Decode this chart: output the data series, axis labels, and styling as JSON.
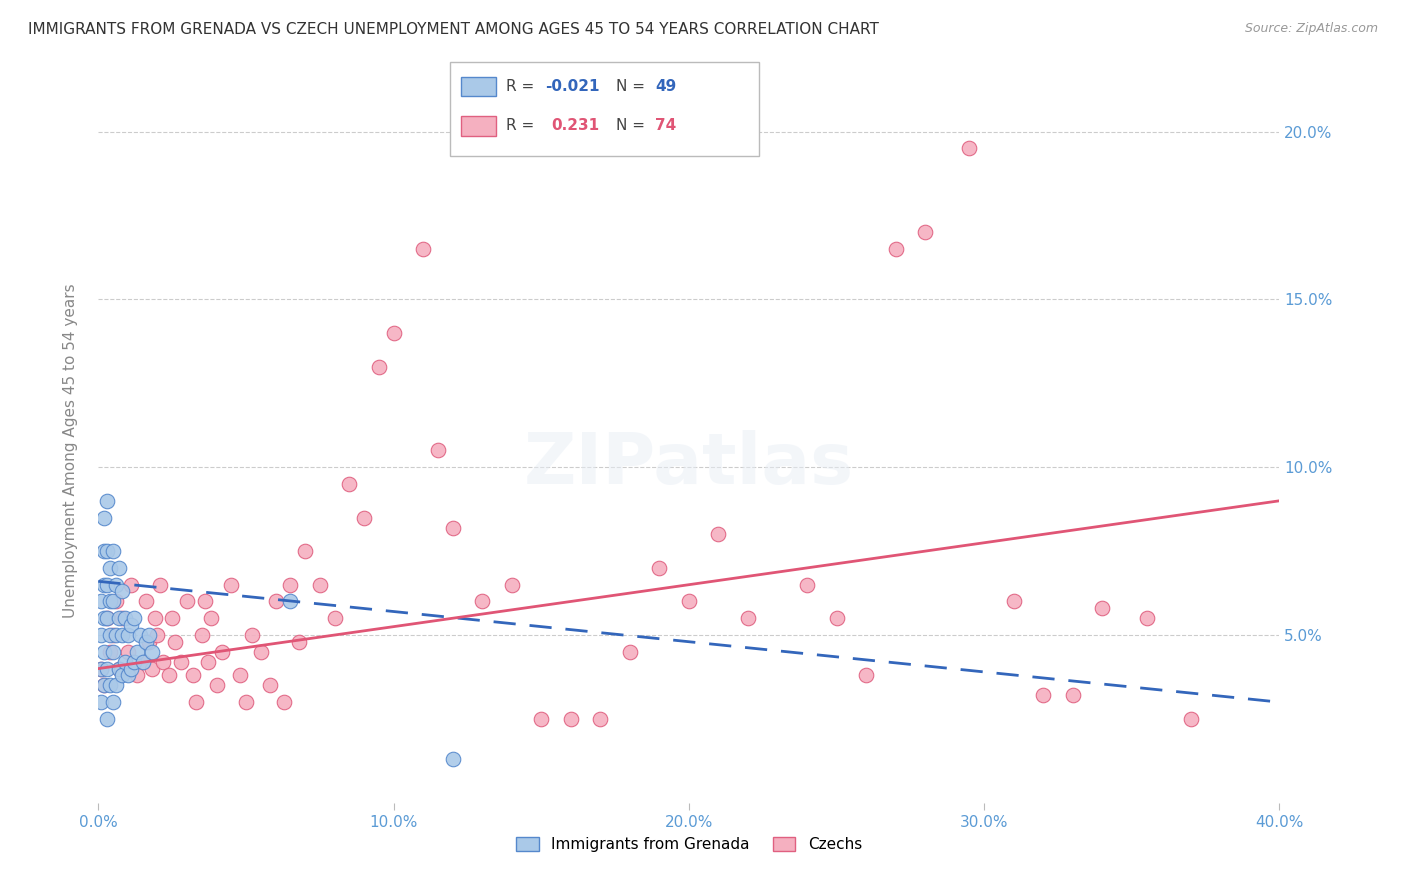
{
  "title": "IMMIGRANTS FROM GRENADA VS CZECH UNEMPLOYMENT AMONG AGES 45 TO 54 YEARS CORRELATION CHART",
  "source": "Source: ZipAtlas.com",
  "ylabel": "Unemployment Among Ages 45 to 54 years",
  "xlim": [
    0.0,
    0.4
  ],
  "ylim": [
    0.0,
    0.21
  ],
  "xticks": [
    0.0,
    0.1,
    0.2,
    0.3,
    0.4
  ],
  "xtick_labels": [
    "0.0%",
    "10.0%",
    "20.0%",
    "30.0%",
    "40.0%"
  ],
  "yticks": [
    0.05,
    0.1,
    0.15,
    0.2
  ],
  "ytick_labels": [
    "5.0%",
    "10.0%",
    "15.0%",
    "20.0%"
  ],
  "series1_name": "Immigrants from Grenada",
  "series1_color": "#aac9e8",
  "series1_edge_color": "#5588cc",
  "series1_line_color": "#3366bb",
  "series2_name": "Czechs",
  "series2_color": "#f5b0c0",
  "series2_edge_color": "#e06080",
  "series2_line_color": "#e05575",
  "background_color": "#ffffff",
  "grid_color": "#cccccc",
  "title_color": "#333333",
  "tick_color": "#5b9bd5",
  "ylabel_color": "#888888",
  "legend_box_color": "#ffffff",
  "legend_box_edge": "#cccccc",
  "series1_x": [
    0.001,
    0.001,
    0.001,
    0.001,
    0.002,
    0.002,
    0.002,
    0.002,
    0.002,
    0.002,
    0.003,
    0.003,
    0.003,
    0.003,
    0.003,
    0.003,
    0.004,
    0.004,
    0.004,
    0.004,
    0.005,
    0.005,
    0.005,
    0.005,
    0.006,
    0.006,
    0.006,
    0.007,
    0.007,
    0.007,
    0.008,
    0.008,
    0.008,
    0.009,
    0.009,
    0.01,
    0.01,
    0.011,
    0.011,
    0.012,
    0.012,
    0.013,
    0.014,
    0.015,
    0.016,
    0.017,
    0.018,
    0.065,
    0.12
  ],
  "series1_y": [
    0.03,
    0.04,
    0.05,
    0.06,
    0.035,
    0.045,
    0.055,
    0.065,
    0.075,
    0.085,
    0.025,
    0.04,
    0.055,
    0.065,
    0.075,
    0.09,
    0.035,
    0.05,
    0.06,
    0.07,
    0.03,
    0.045,
    0.06,
    0.075,
    0.035,
    0.05,
    0.065,
    0.04,
    0.055,
    0.07,
    0.038,
    0.05,
    0.063,
    0.042,
    0.055,
    0.038,
    0.05,
    0.04,
    0.053,
    0.042,
    0.055,
    0.045,
    0.05,
    0.042,
    0.048,
    0.05,
    0.045,
    0.06,
    0.013
  ],
  "series2_x": [
    0.001,
    0.002,
    0.003,
    0.004,
    0.005,
    0.006,
    0.007,
    0.008,
    0.01,
    0.011,
    0.013,
    0.015,
    0.016,
    0.017,
    0.018,
    0.019,
    0.02,
    0.021,
    0.022,
    0.024,
    0.025,
    0.026,
    0.028,
    0.03,
    0.032,
    0.033,
    0.035,
    0.036,
    0.037,
    0.038,
    0.04,
    0.042,
    0.045,
    0.048,
    0.05,
    0.052,
    0.055,
    0.058,
    0.06,
    0.063,
    0.065,
    0.068,
    0.07,
    0.075,
    0.08,
    0.085,
    0.09,
    0.095,
    0.1,
    0.11,
    0.115,
    0.12,
    0.13,
    0.14,
    0.15,
    0.16,
    0.17,
    0.18,
    0.19,
    0.2,
    0.21,
    0.22,
    0.24,
    0.25,
    0.26,
    0.27,
    0.28,
    0.295,
    0.31,
    0.32,
    0.33,
    0.34,
    0.355,
    0.37
  ],
  "series2_y": [
    0.04,
    0.035,
    0.055,
    0.045,
    0.05,
    0.06,
    0.04,
    0.055,
    0.045,
    0.065,
    0.038,
    0.042,
    0.06,
    0.048,
    0.04,
    0.055,
    0.05,
    0.065,
    0.042,
    0.038,
    0.055,
    0.048,
    0.042,
    0.06,
    0.038,
    0.03,
    0.05,
    0.06,
    0.042,
    0.055,
    0.035,
    0.045,
    0.065,
    0.038,
    0.03,
    0.05,
    0.045,
    0.035,
    0.06,
    0.03,
    0.065,
    0.048,
    0.075,
    0.065,
    0.055,
    0.095,
    0.085,
    0.13,
    0.14,
    0.165,
    0.105,
    0.082,
    0.06,
    0.065,
    0.025,
    0.025,
    0.025,
    0.045,
    0.07,
    0.06,
    0.08,
    0.055,
    0.065,
    0.055,
    0.038,
    0.165,
    0.17,
    0.195,
    0.06,
    0.032,
    0.032,
    0.058,
    0.055,
    0.025
  ],
  "line1_x0": 0.0,
  "line1_x1": 0.4,
  "line1_y0": 0.066,
  "line1_y1": 0.03,
  "line2_x0": 0.0,
  "line2_x1": 0.4,
  "line2_y0": 0.04,
  "line2_y1": 0.09
}
